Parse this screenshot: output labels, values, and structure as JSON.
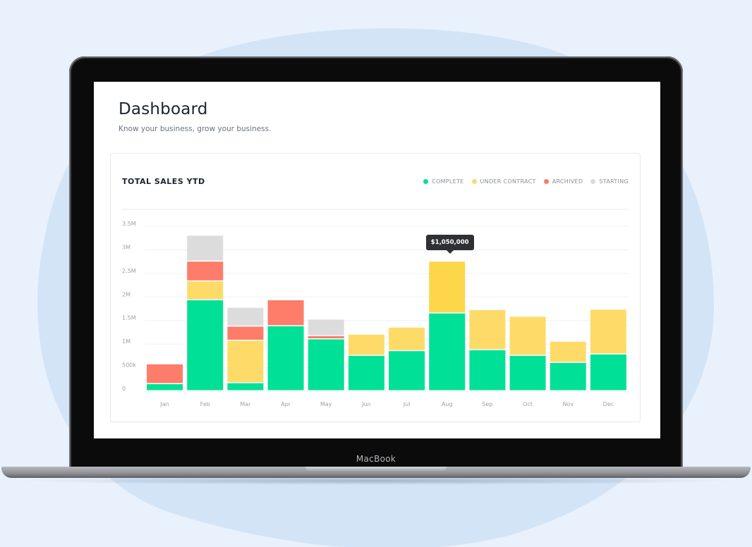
{
  "page": {
    "title": "Dashboard",
    "subtitle": "Know your business, grow your business."
  },
  "card": {
    "title": "TOTAL SALES YTD"
  },
  "legend": [
    {
      "label": "COMPLETE",
      "color": "#00e096"
    },
    {
      "label": "UNDER CONTRACT",
      "color": "#fedb68"
    },
    {
      "label": "ARCHIVED",
      "color": "#fe7c6a"
    },
    {
      "label": "STARTING",
      "color": "#dcdcdc"
    }
  ],
  "tooltip": {
    "text": "$1,050,000",
    "category": "Aug"
  },
  "device": {
    "brand": "MacBook"
  },
  "chart_data": {
    "type": "bar",
    "stacked": true,
    "categories": [
      "Jan",
      "Feb",
      "Mar",
      "Apr",
      "May",
      "Jun",
      "Jul",
      "Aug",
      "Sep",
      "Oct",
      "Nov",
      "Dec"
    ],
    "y_ticks": [
      "0",
      "500k",
      "1M",
      "1.5M",
      "2M",
      "2.5M",
      "3M",
      "3.5M"
    ],
    "ylim": [
      0,
      3500000
    ],
    "series": [
      {
        "name": "COMPLETE",
        "color": "#00e096",
        "values": [
          150000,
          1930000,
          170000,
          1380000,
          1100000,
          750000,
          850000,
          1650000,
          870000,
          750000,
          600000,
          780000
        ]
      },
      {
        "name": "UNDER CONTRACT",
        "color": "#fedb68",
        "values": [
          0,
          400000,
          900000,
          0,
          0,
          450000,
          500000,
          1100000,
          850000,
          830000,
          450000,
          950000
        ]
      },
      {
        "name": "ARCHIVED",
        "color": "#fe7c6a",
        "values": [
          420000,
          420000,
          300000,
          550000,
          70000,
          0,
          0,
          0,
          0,
          0,
          0,
          0
        ]
      },
      {
        "name": "STARTING",
        "color": "#dcdcdc",
        "values": [
          0,
          550000,
          400000,
          0,
          350000,
          0,
          0,
          0,
          0,
          0,
          0,
          0
        ]
      }
    ],
    "grid": true,
    "legend_position": "top-right"
  }
}
